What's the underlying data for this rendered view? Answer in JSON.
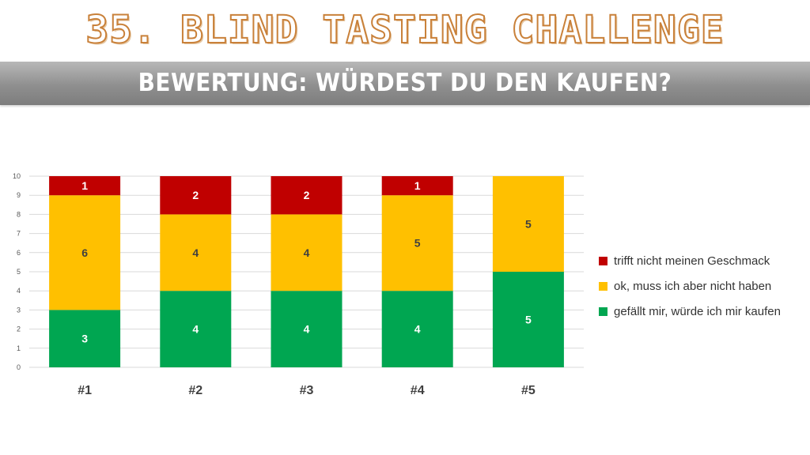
{
  "header": {
    "title": "35. BLIND TASTING CHALLENGE",
    "subtitle": "BEWERTUNG: WÜRDEST DU DEN KAUFEN?"
  },
  "chart_data": {
    "type": "bar",
    "stacked": true,
    "categories": [
      "#1",
      "#2",
      "#3",
      "#4",
      "#5"
    ],
    "series": [
      {
        "name": "gefällt mir, würde ich mir kaufen",
        "color": "#00a651",
        "values": [
          3,
          4,
          4,
          4,
          5
        ]
      },
      {
        "name": "ok, muss ich aber nicht haben",
        "color": "#ffc000",
        "values": [
          6,
          4,
          4,
          5,
          5
        ]
      },
      {
        "name": "trifft nicht meinen Geschmack",
        "color": "#c00000",
        "values": [
          1,
          2,
          2,
          1,
          0
        ]
      }
    ],
    "ylim": [
      0,
      10
    ],
    "yticks": [
      0,
      1,
      2,
      3,
      4,
      5,
      6,
      7,
      8,
      9,
      10
    ],
    "grid": true,
    "legend": "right",
    "legend_order": [
      2,
      1,
      0
    ]
  }
}
